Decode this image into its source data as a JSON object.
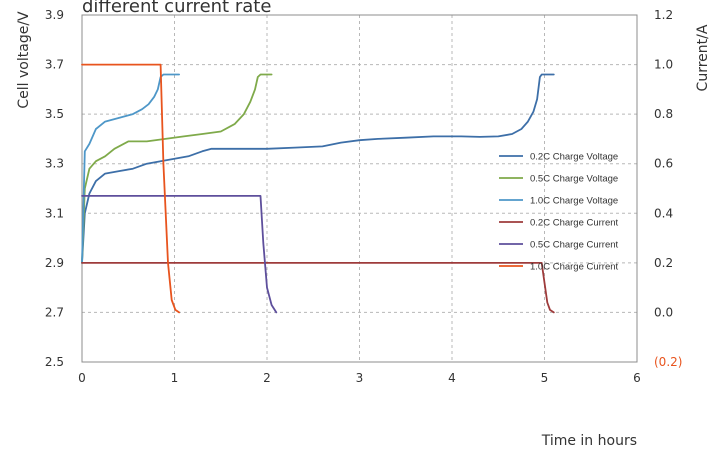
{
  "chart_data": {
    "type": "line",
    "title": "different current rate",
    "ylabel": "Cell voltage/V",
    "y2label": "Current/A",
    "xlabel": "Time in hours",
    "xlim": [
      0,
      6
    ],
    "ylim": [
      2.5,
      3.9
    ],
    "y2lim": [
      -0.2,
      1.2
    ],
    "x_ticks": [
      "0",
      "1",
      "2",
      "3",
      "4",
      "5",
      "6"
    ],
    "y_ticks": [
      "2.5",
      "2.7",
      "2.9",
      "3.1",
      "3.3",
      "3.5",
      "3.7",
      "3.9"
    ],
    "y2_ticks": [
      "(0.2)",
      "0.0",
      "0.2",
      "0.4",
      "0.6",
      "0.8",
      "1.0",
      "1.2"
    ],
    "y2_negative_color": "#e8541e",
    "grid": true,
    "legend_position": "right",
    "series": [
      {
        "name": "0.2C Charge Voltage",
        "axis": "left",
        "color": "#3d6fa8",
        "x": [
          0,
          0.03,
          0.08,
          0.15,
          0.25,
          0.4,
          0.55,
          0.7,
          0.85,
          1.0,
          1.15,
          1.3,
          1.4,
          1.6,
          2.0,
          2.3,
          2.6,
          2.8,
          3.0,
          3.2,
          3.5,
          3.8,
          4.1,
          4.3,
          4.5,
          4.65,
          4.75,
          4.82,
          4.88,
          4.92,
          4.95,
          4.97,
          5.1
        ],
        "y": [
          2.9,
          3.1,
          3.18,
          3.23,
          3.26,
          3.27,
          3.28,
          3.3,
          3.31,
          3.32,
          3.33,
          3.35,
          3.36,
          3.36,
          3.36,
          3.365,
          3.37,
          3.385,
          3.395,
          3.4,
          3.405,
          3.41,
          3.41,
          3.408,
          3.41,
          3.42,
          3.44,
          3.47,
          3.51,
          3.56,
          3.65,
          3.66,
          3.66
        ]
      },
      {
        "name": "0.5C Charge Voltage",
        "axis": "left",
        "color": "#7faa4a",
        "x": [
          0,
          0.03,
          0.08,
          0.15,
          0.25,
          0.35,
          0.5,
          0.7,
          0.9,
          1.1,
          1.3,
          1.5,
          1.65,
          1.75,
          1.82,
          1.87,
          1.9,
          1.93,
          2.05
        ],
        "y": [
          2.9,
          3.2,
          3.28,
          3.31,
          3.33,
          3.36,
          3.39,
          3.39,
          3.4,
          3.41,
          3.42,
          3.43,
          3.46,
          3.5,
          3.55,
          3.6,
          3.65,
          3.66,
          3.66
        ]
      },
      {
        "name": "1.0C Charge Voltage",
        "axis": "left",
        "color": "#4e97c8",
        "x": [
          0,
          0.03,
          0.08,
          0.15,
          0.25,
          0.35,
          0.45,
          0.55,
          0.65,
          0.72,
          0.78,
          0.82,
          0.85,
          0.88,
          0.95,
          1.05
        ],
        "y": [
          2.9,
          3.35,
          3.38,
          3.44,
          3.47,
          3.48,
          3.49,
          3.5,
          3.52,
          3.54,
          3.57,
          3.6,
          3.65,
          3.66,
          3.66,
          3.66
        ]
      },
      {
        "name": "0.2C Charge Current",
        "axis": "right",
        "color": "#9e3b3b",
        "x": [
          0,
          4.97,
          5.0,
          5.03,
          5.06,
          5.1
        ],
        "y": [
          0.2,
          0.2,
          0.12,
          0.04,
          0.01,
          0.0
        ]
      },
      {
        "name": "0.5C Charge Current",
        "axis": "right",
        "color": "#5e4f9c",
        "x": [
          0,
          1.93,
          1.96,
          2.0,
          2.05,
          2.1
        ],
        "y": [
          0.47,
          0.47,
          0.28,
          0.1,
          0.03,
          0.0
        ]
      },
      {
        "name": "1.0C Charge Current",
        "axis": "right",
        "color": "#e8541e",
        "x": [
          0,
          0.85,
          0.88,
          0.93,
          0.97,
          1.01,
          1.05
        ],
        "y": [
          1.0,
          1.0,
          0.6,
          0.2,
          0.05,
          0.01,
          0.0
        ]
      }
    ]
  }
}
